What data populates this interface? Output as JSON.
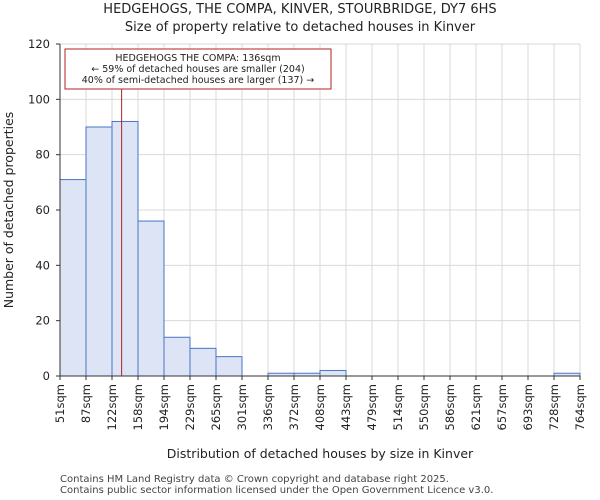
{
  "chart_data": {
    "type": "bar",
    "title": "HEDGEHOGS, THE COMPA, KINVER, STOURBRIDGE, DY7 6HS",
    "subtitle": "Size of property relative to detached houses in Kinver",
    "xlabel": "Distribution of detached houses by size in Kinver",
    "ylabel": "Number of detached properties",
    "ylim": [
      0,
      120
    ],
    "yticks": [
      0,
      20,
      40,
      60,
      80,
      100,
      120
    ],
    "bin_edges": [
      "51sqm",
      "87sqm",
      "122sqm",
      "158sqm",
      "194sqm",
      "229sqm",
      "265sqm",
      "301sqm",
      "336sqm",
      "372sqm",
      "408sqm",
      "443sqm",
      "479sqm",
      "514sqm",
      "550sqm",
      "586sqm",
      "621sqm",
      "657sqm",
      "693sqm",
      "728sqm",
      "764sqm"
    ],
    "values": [
      71,
      90,
      92,
      56,
      14,
      10,
      7,
      0,
      1,
      1,
      2,
      0,
      0,
      0,
      0,
      0,
      0,
      0,
      0,
      1
    ],
    "marker_value_sqm": 136,
    "marker_bin_position": 2.37,
    "annotation": {
      "line1": "HEDGEHOGS THE COMPA: 136sqm",
      "line2": "← 59% of detached houses are smaller (204)",
      "line3": "40% of semi-detached houses are larger (137) →"
    },
    "colors": {
      "bar_fill": "#dce4f5",
      "bar_stroke": "#4a74c4",
      "marker": "#b22222",
      "grid": "#d9d9d9"
    },
    "grid": true
  },
  "footer": {
    "line1": "Contains HM Land Registry data © Crown copyright and database right 2025.",
    "line2": "Contains public sector information licensed under the Open Government Licence v3.0."
  }
}
